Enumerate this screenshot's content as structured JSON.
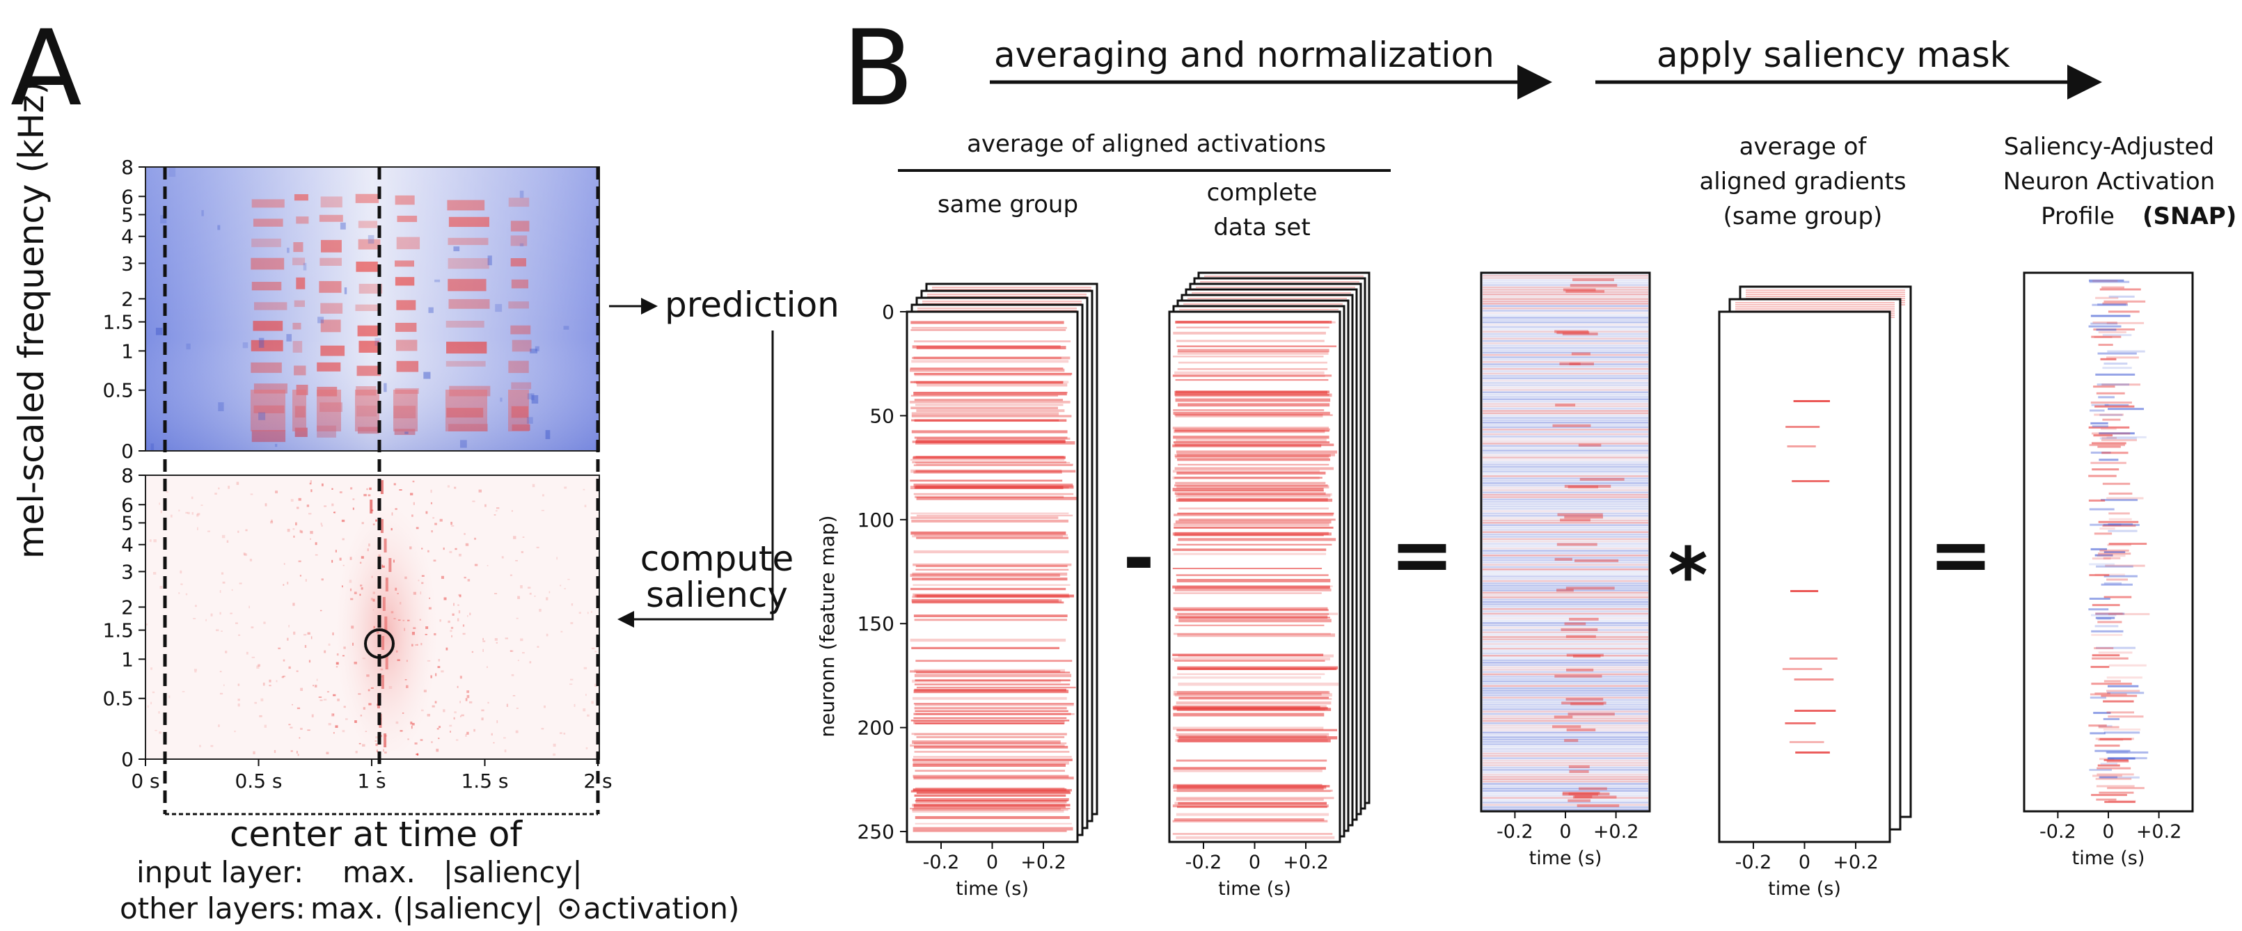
{
  "panelA": {
    "letter": "A",
    "ylabel": "mel-scaled frequency (kHz)",
    "freq_ticks": [
      "0",
      "0.5",
      "1",
      "1.5",
      "2",
      "3",
      "4",
      "5",
      "6",
      "8"
    ],
    "time_ticks": [
      "0 s",
      "0.5 s",
      "1 s",
      "1.5 s",
      "2 s"
    ],
    "prediction_label": "prediction",
    "compute_saliency_label": [
      "compute",
      "saliency"
    ],
    "center_caption": "center at time of",
    "input_layer_label": "input layer:",
    "input_layer_value": "max.   |saliency|",
    "other_layers_label": "other layers:",
    "other_layers_value": "max. (|saliency|",
    "other_layers_suffix": "activation)",
    "colors": {
      "blue": "#4a63d6",
      "red": "#e8413f"
    }
  },
  "panelB": {
    "letter": "B",
    "arrow1_label": "averaging and normalization",
    "arrow2_label": "apply saliency mask",
    "group_header": "average of aligned activations",
    "col_same_group": "same group",
    "col_complete": [
      "complete",
      "data set"
    ],
    "col_gradients": [
      "average of",
      "aligned gradients",
      "(same group)"
    ],
    "col_snap": [
      "Saliency-Adjusted",
      "Neuron Activation",
      "Profile"
    ],
    "snap_bold": "(SNAP)",
    "ylabel": "neuronn (feature map)",
    "neuron_ticks": [
      "0",
      "50",
      "100",
      "150",
      "200",
      "250"
    ],
    "time_ticks": [
      "-0.2",
      "0",
      "+0.2"
    ],
    "xlabel": "time (s)",
    "op_minus": "-",
    "op_equals": "=",
    "op_star": "*"
  }
}
